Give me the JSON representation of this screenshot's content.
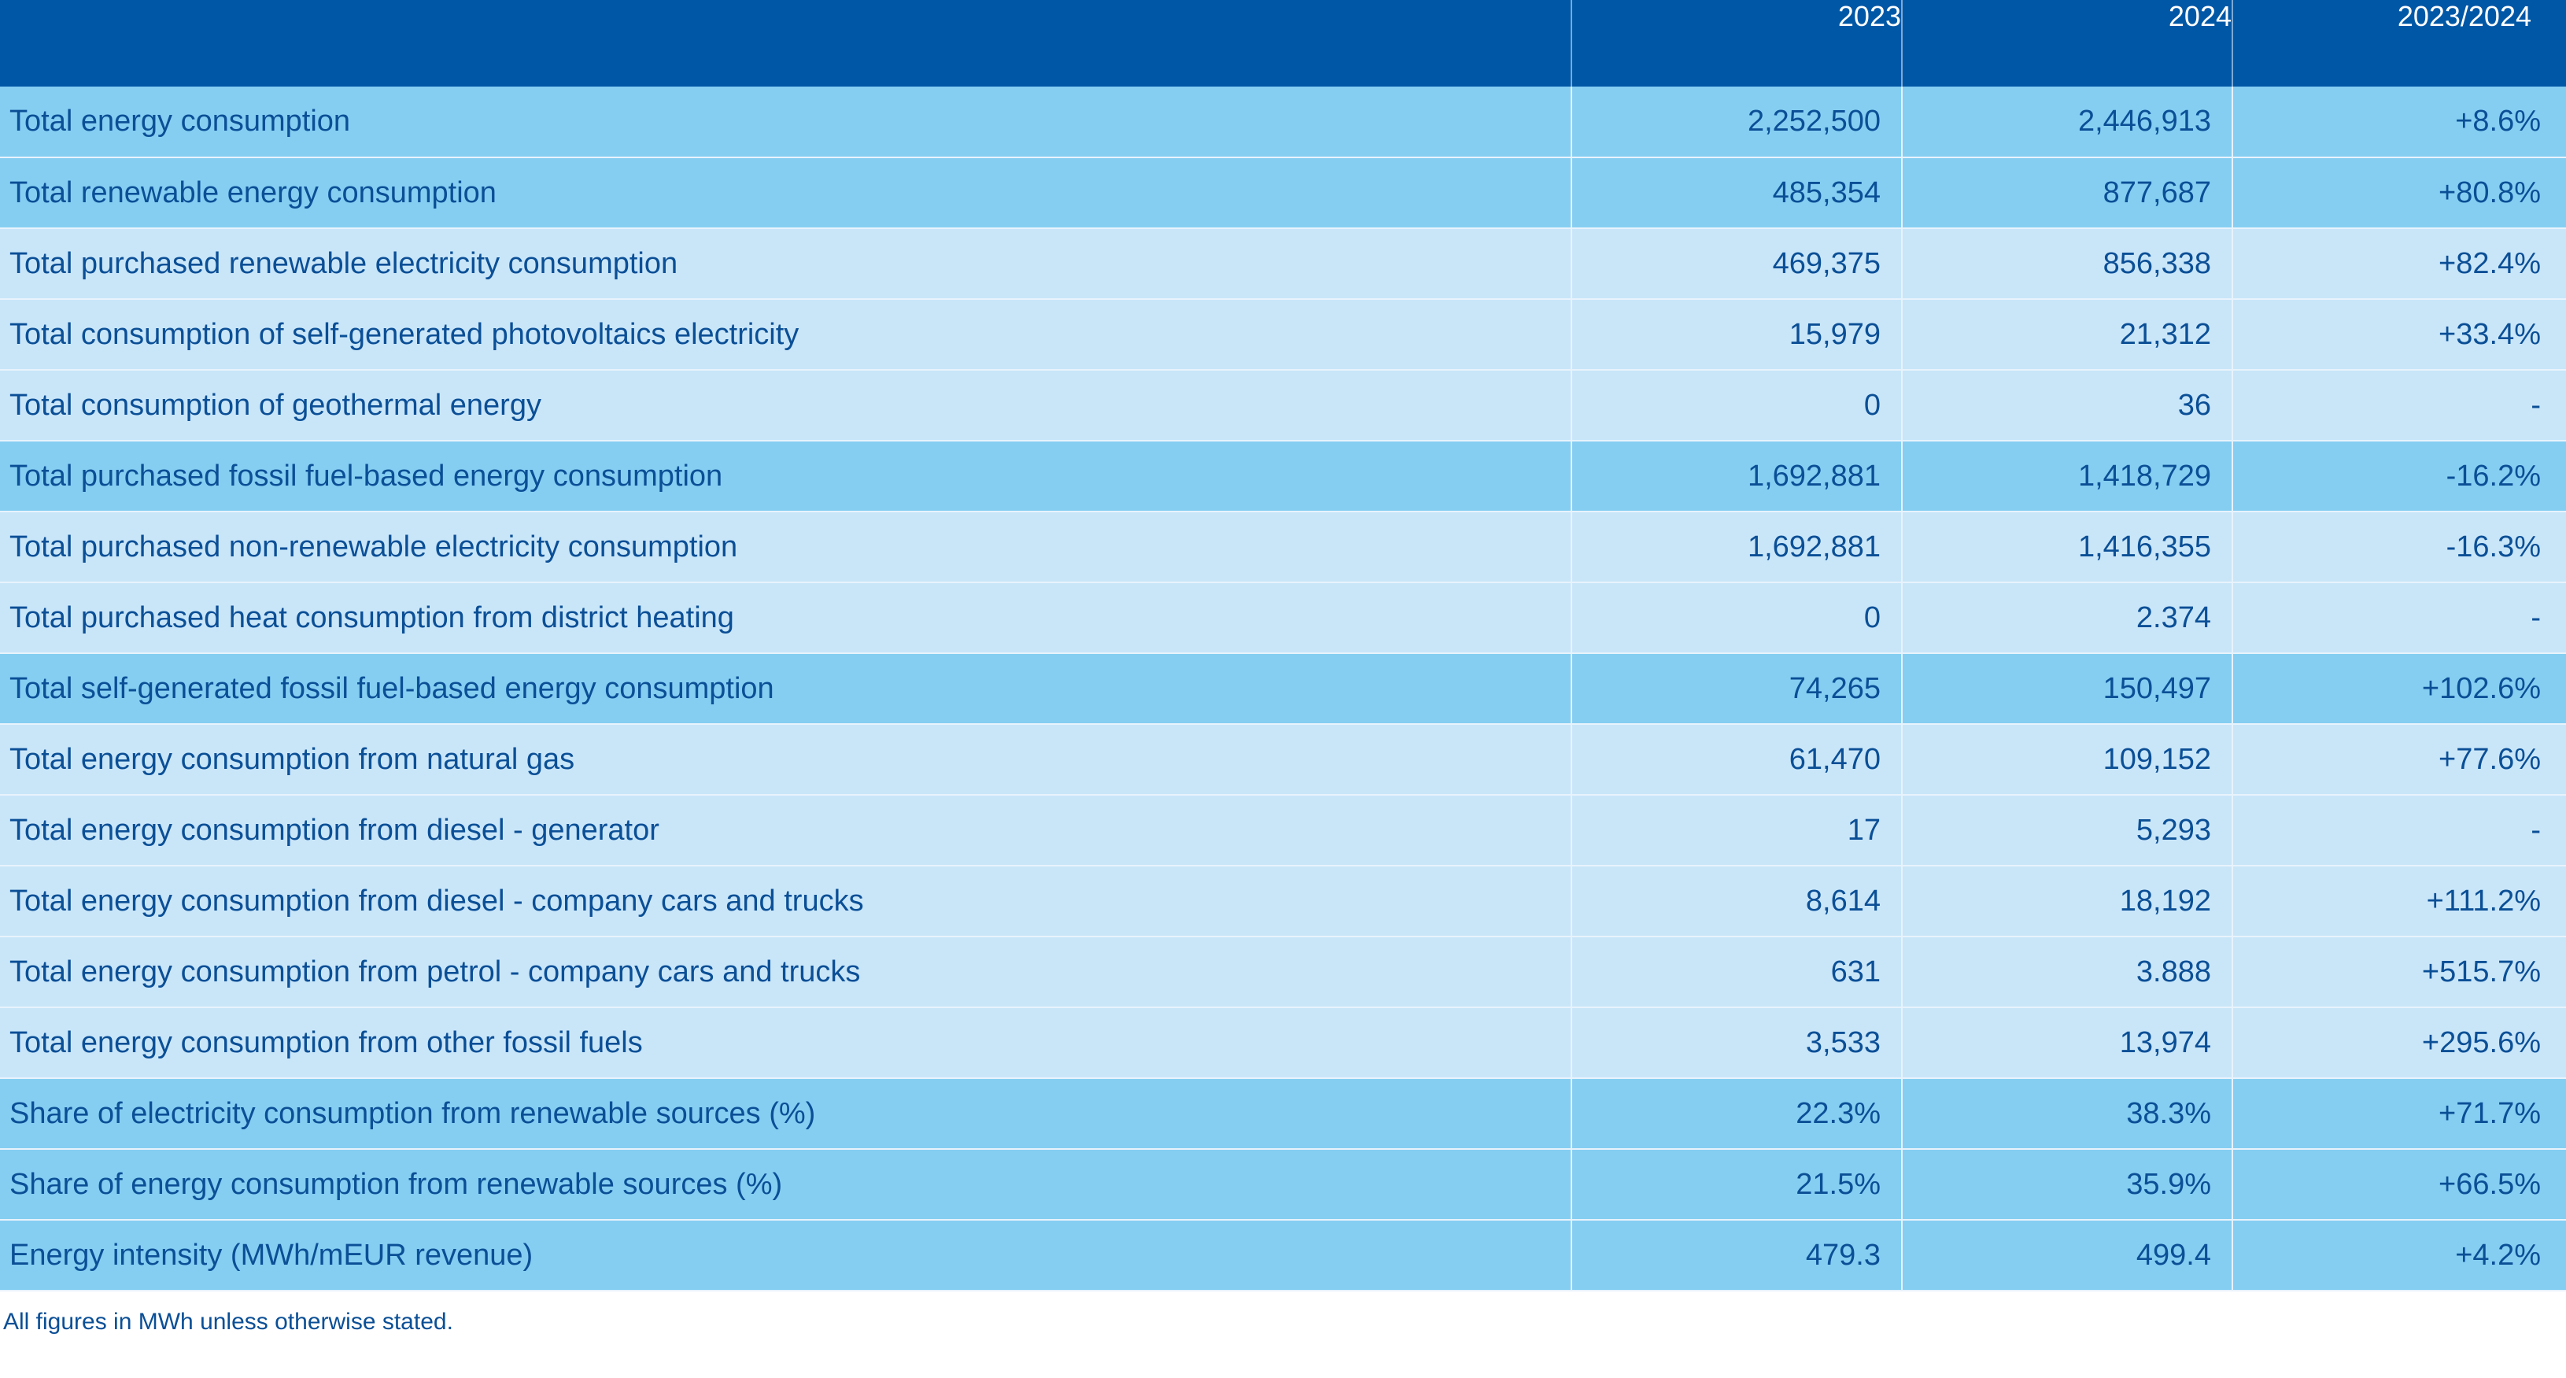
{
  "table": {
    "columns": [
      "",
      "2023",
      "2024",
      "2023/2024"
    ],
    "rows": [
      {
        "label": "Total energy consumption",
        "v2023": "2,252,500",
        "v2024": "2,446,913",
        "change": "+8.6%",
        "tone": "dark"
      },
      {
        "label": "Total renewable energy consumption",
        "v2023": "485,354",
        "v2024": "877,687",
        "change": "+80.8%",
        "tone": "dark"
      },
      {
        "label": "Total purchased renewable electricity consumption",
        "v2023": "469,375",
        "v2024": "856,338",
        "change": "+82.4%",
        "tone": "light"
      },
      {
        "label": "Total consumption of self-generated photovoltaics electricity",
        "v2023": "15,979",
        "v2024": "21,312",
        "change": "+33.4%",
        "tone": "light"
      },
      {
        "label": "Total consumption of geothermal energy",
        "v2023": "0",
        "v2024": "36",
        "change": "-",
        "tone": "light"
      },
      {
        "label": "Total purchased fossil fuel-based energy consumption",
        "v2023": "1,692,881",
        "v2024": "1,418,729",
        "change": "-16.2%",
        "tone": "dark"
      },
      {
        "label": "Total purchased non-renewable electricity consumption",
        "v2023": "1,692,881",
        "v2024": "1,416,355",
        "change": "-16.3%",
        "tone": "light"
      },
      {
        "label": "Total purchased heat consumption from district heating",
        "v2023": "0",
        "v2024": "2.374",
        "change": "-",
        "tone": "light"
      },
      {
        "label": "Total self-generated fossil fuel-based energy consumption",
        "v2023": "74,265",
        "v2024": "150,497",
        "change": "+102.6%",
        "tone": "dark"
      },
      {
        "label": "Total energy consumption from natural gas",
        "v2023": "61,470",
        "v2024": "109,152",
        "change": "+77.6%",
        "tone": "light"
      },
      {
        "label": "Total energy consumption from diesel - generator",
        "v2023": "17",
        "v2024": "5,293",
        "change": "-",
        "tone": "light"
      },
      {
        "label": "Total energy consumption from diesel - company cars and trucks",
        "v2023": "8,614",
        "v2024": "18,192",
        "change": "+111.2%",
        "tone": "light"
      },
      {
        "label": "Total energy consumption from petrol - company cars and trucks",
        "v2023": "631",
        "v2024": "3.888",
        "change": "+515.7%",
        "tone": "light"
      },
      {
        "label": "Total energy consumption from other fossil fuels",
        "v2023": "3,533",
        "v2024": "13,974",
        "change": "+295.6%",
        "tone": "light"
      },
      {
        "label": "Share of electricity consumption from renewable sources (%)",
        "v2023": "22.3%",
        "v2024": "38.3%",
        "change": "+71.7%",
        "tone": "dark"
      },
      {
        "label": "Share of energy consumption from renewable sources (%)",
        "v2023": "21.5%",
        "v2024": "35.9%",
        "change": "+66.5%",
        "tone": "dark"
      },
      {
        "label": "Energy intensity (MWh/mEUR revenue)",
        "v2023": "479.3",
        "v2024": "499.4",
        "change": "+4.2%",
        "tone": "dark"
      }
    ]
  },
  "footnote": "All figures in MWh unless otherwise stated.",
  "colors": {
    "header_bg": "#0057a6",
    "row_dark": "#85cef2",
    "row_light": "#c9e6f9",
    "text": "#0b4f96"
  }
}
